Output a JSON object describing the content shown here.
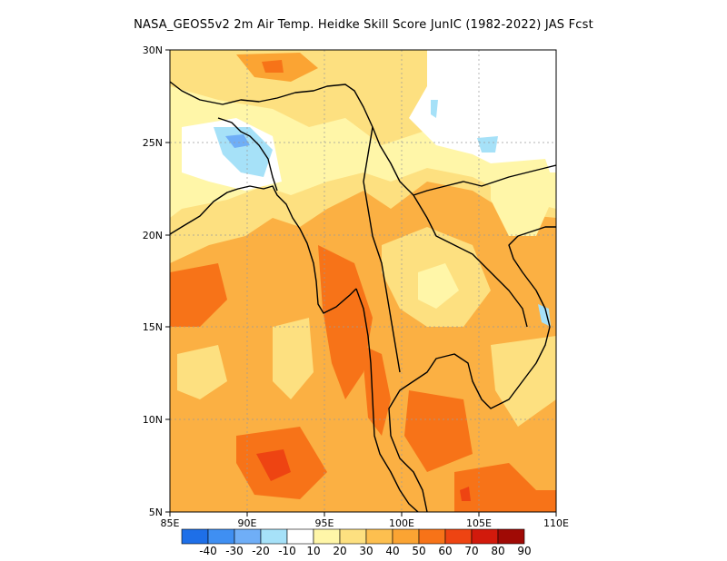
{
  "title": "NASA_GEOS5v2  2m Air Temp. Heidke Skill Score JunIC (1982-2022) JAS Fcst",
  "map": {
    "lon_range": [
      85,
      110
    ],
    "lat_range": [
      5,
      30
    ],
    "lon_ticks": [
      "85E",
      "90E",
      "95E",
      "100E",
      "105E",
      "110E"
    ],
    "lat_ticks": [
      "5N",
      "10N",
      "15N",
      "20N",
      "25N",
      "30N"
    ],
    "gridlines": true
  },
  "colorbar": {
    "labels": [
      "-40",
      "-30",
      "-20",
      "-10",
      "10",
      "20",
      "30",
      "40",
      "50",
      "60",
      "70",
      "80",
      "90"
    ],
    "colors": [
      "#1e6fe8",
      "#3f8ff2",
      "#6faef7",
      "#a6e1f8",
      "#ffffff",
      "#fff6a8",
      "#fde080",
      "#fdbf4f",
      "#fba433",
      "#f77318",
      "#ee4412",
      "#d21a0c",
      "#a00a05"
    ]
  },
  "palette": {
    "land_ocean_base": "#fbb043",
    "coast": "#000000"
  }
}
